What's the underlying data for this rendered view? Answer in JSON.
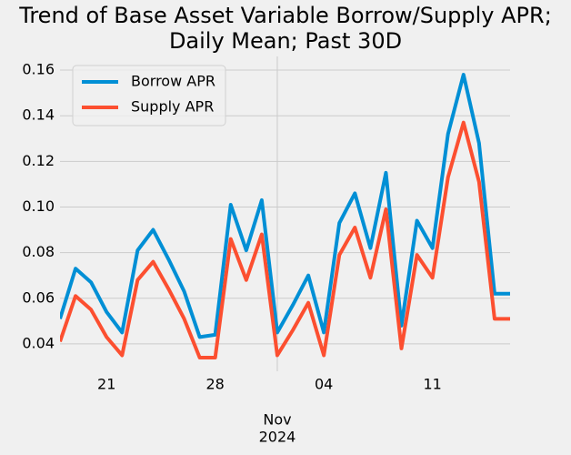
{
  "chart_data": {
    "type": "line",
    "title": [
      "Trend of Base Asset Variable Borrow/Supply APR;",
      "Daily Mean; Past 30D"
    ],
    "x": [
      "2024-10-18",
      "2024-10-19",
      "2024-10-20",
      "2024-10-21",
      "2024-10-22",
      "2024-10-23",
      "2024-10-24",
      "2024-10-25",
      "2024-10-26",
      "2024-10-27",
      "2024-10-28",
      "2024-10-29",
      "2024-10-30",
      "2024-10-31",
      "2024-11-01",
      "2024-11-02",
      "2024-11-03",
      "2024-11-04",
      "2024-11-05",
      "2024-11-06",
      "2024-11-07",
      "2024-11-08",
      "2024-11-09",
      "2024-11-10",
      "2024-11-11",
      "2024-11-12",
      "2024-11-13",
      "2024-11-14",
      "2024-11-15",
      "2024-11-16"
    ],
    "series": [
      {
        "name": "Borrow APR",
        "color": "#008fd5",
        "values": [
          0.051,
          0.073,
          0.067,
          0.054,
          0.045,
          0.081,
          0.09,
          0.077,
          0.063,
          0.043,
          0.044,
          0.101,
          0.081,
          0.103,
          0.045,
          0.057,
          0.07,
          0.045,
          0.093,
          0.106,
          0.082,
          0.115,
          0.048,
          0.094,
          0.082,
          0.132,
          0.158,
          0.128,
          0.062,
          0.062
        ]
      },
      {
        "name": "Supply APR",
        "color": "#fc4f30",
        "values": [
          0.041,
          0.061,
          0.055,
          0.043,
          0.035,
          0.068,
          0.076,
          0.064,
          0.051,
          0.034,
          0.034,
          0.086,
          0.068,
          0.088,
          0.035,
          0.046,
          0.058,
          0.035,
          0.079,
          0.091,
          0.069,
          0.099,
          0.038,
          0.079,
          0.069,
          0.113,
          0.137,
          0.111,
          0.051,
          0.051
        ]
      }
    ],
    "xlim": [
      "2024-10-18",
      "2024-11-16"
    ],
    "xticks": [
      {
        "value": "2024-10-21",
        "label": "21"
      },
      {
        "value": "2024-10-28",
        "label": "28"
      },
      {
        "value": "2024-11-04",
        "label": "04"
      },
      {
        "value": "2024-11-11",
        "label": "11"
      }
    ],
    "x_major_ticks": [
      {
        "value": "2024-11-01",
        "label": "Nov",
        "year": "2024"
      }
    ],
    "ylim": [
      0.028,
      0.166
    ],
    "yticks": [
      {
        "value": 0.04,
        "label": "0.04"
      },
      {
        "value": 0.06,
        "label": "0.06"
      },
      {
        "value": 0.08,
        "label": "0.08"
      },
      {
        "value": 0.1,
        "label": "0.10"
      },
      {
        "value": 0.12,
        "label": "0.12"
      },
      {
        "value": 0.14,
        "label": "0.14"
      },
      {
        "value": 0.16,
        "label": "0.16"
      }
    ],
    "grid": true,
    "legend": "upper left"
  }
}
